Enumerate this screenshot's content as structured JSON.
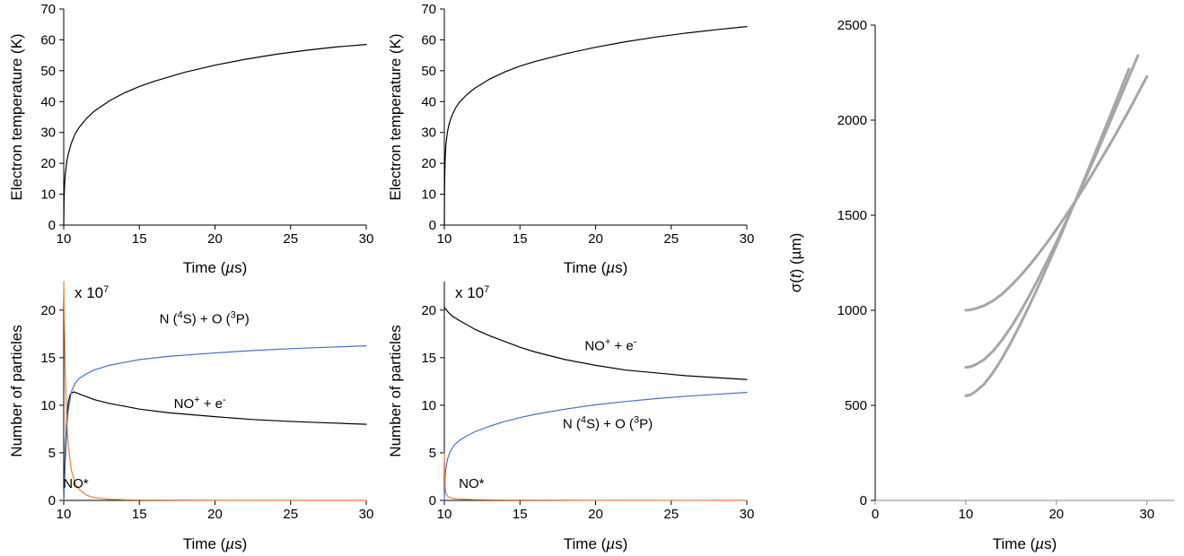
{
  "chart_data": [
    {
      "id": "te-left",
      "type": "line",
      "title": "",
      "xlabel_parts": [
        "Time (",
        "µ",
        "s)"
      ],
      "ylabel": "Electron temperature (K)",
      "xlim": [
        10,
        30
      ],
      "ylim": [
        0,
        70
      ],
      "xticks": [
        10,
        15,
        20,
        25,
        30
      ],
      "yticks": [
        0,
        10,
        20,
        30,
        40,
        50,
        60,
        70
      ],
      "grid": false,
      "series": [
        {
          "color": "#000000",
          "x": [
            10,
            10.02,
            10.05,
            10.1,
            10.2,
            10.3,
            10.5,
            10.75,
            11,
            11.5,
            12,
            13,
            14,
            15,
            16,
            18,
            20,
            22,
            24,
            26,
            28,
            30
          ],
          "y": [
            0,
            8,
            12.5,
            16.5,
            20.5,
            23,
            26.5,
            29.5,
            31.5,
            34.5,
            36.8,
            40.2,
            42.8,
            44.9,
            46.6,
            49.5,
            51.8,
            53.7,
            55.3,
            56.6,
            57.7,
            58.5
          ]
        }
      ]
    },
    {
      "id": "te-mid",
      "type": "line",
      "title": "",
      "xlabel_parts": [
        "Time (",
        "µ",
        "s)"
      ],
      "ylabel": "Electron temperature (K)",
      "xlim": [
        10,
        30
      ],
      "ylim": [
        0,
        70
      ],
      "xticks": [
        10,
        15,
        20,
        25,
        30
      ],
      "yticks": [
        0,
        10,
        20,
        30,
        40,
        50,
        60,
        70
      ],
      "grid": false,
      "series": [
        {
          "color": "#000000",
          "x": [
            10,
            10.01,
            10.03,
            10.06,
            10.1,
            10.2,
            10.3,
            10.5,
            10.75,
            11,
            11.5,
            12,
            13,
            14,
            15,
            16,
            18,
            20,
            22,
            24,
            26,
            28,
            30
          ],
          "y": [
            0,
            10,
            17,
            22,
            26,
            30,
            32.5,
            35.5,
            38,
            39.8,
            42.3,
            44.3,
            47.3,
            49.6,
            51.5,
            53,
            55.5,
            57.6,
            59.4,
            60.9,
            62.2,
            63.3,
            64.3
          ]
        }
      ]
    },
    {
      "id": "np-left",
      "type": "line",
      "title": "",
      "multiplier": [
        "x 10",
        "7"
      ],
      "xlabel_parts": [
        "Time (",
        "µ",
        "s)"
      ],
      "ylabel": "Number of particles",
      "xlim": [
        10,
        30
      ],
      "ylim": [
        0,
        23
      ],
      "xticks": [
        10,
        15,
        20,
        25,
        30
      ],
      "yticks": [
        0,
        5,
        10,
        15,
        20
      ],
      "grid": false,
      "series": [
        {
          "color": "#000000",
          "x": [
            10,
            10.1,
            10.2,
            10.3,
            10.4,
            10.5,
            10.7,
            11,
            11.5,
            12,
            13,
            14,
            15,
            17,
            20,
            22.5,
            25,
            27.5,
            30
          ],
          "y": [
            0,
            5,
            8.5,
            10.3,
            11,
            11.3,
            11.4,
            11.2,
            10.9,
            10.6,
            10.2,
            9.9,
            9.6,
            9.2,
            8.8,
            8.5,
            8.3,
            8.15,
            8
          ]
        },
        {
          "color": "#4472c4",
          "x": [
            10,
            10.1,
            10.2,
            10.3,
            10.5,
            10.75,
            11,
            11.5,
            12,
            13,
            14,
            15,
            17,
            20,
            22.5,
            25,
            27.5,
            30
          ],
          "y": [
            0,
            4,
            7.5,
            9.5,
            11.4,
            12.3,
            12.8,
            13.3,
            13.7,
            14.2,
            14.5,
            14.8,
            15.15,
            15.5,
            15.75,
            15.95,
            16.1,
            16.25
          ]
        },
        {
          "color": "#ed7d31",
          "x": [
            10,
            10.05,
            10.1,
            10.2,
            10.3,
            10.5,
            10.75,
            11,
            11.5,
            12,
            13,
            14,
            15,
            20,
            30
          ],
          "y": [
            23,
            18,
            13.5,
            8.5,
            5.8,
            3.2,
            1.8,
            1.2,
            0.55,
            0.3,
            0.12,
            0.07,
            0.04,
            0.01,
            0
          ]
        }
      ],
      "annotations": [
        {
          "parts": [
            "N (",
            "4",
            "S) + O (",
            "3",
            "P)"
          ],
          "x": 19.3,
          "y": 18.6
        },
        {
          "parts": [
            "NO",
            "+",
            " + e",
            "-"
          ],
          "x": 19,
          "y": 9.7
        },
        {
          "parts": [
            "NO*"
          ],
          "x": 10.8,
          "y": 1.3
        }
      ]
    },
    {
      "id": "np-mid",
      "type": "line",
      "title": "",
      "multiplier": [
        "x 10",
        "7"
      ],
      "xlabel_parts": [
        "Time (",
        "µ",
        "s)"
      ],
      "ylabel": "Number of particles",
      "xlim": [
        10,
        30
      ],
      "ylim": [
        0,
        23
      ],
      "xticks": [
        10,
        15,
        20,
        25,
        30
      ],
      "yticks": [
        0,
        5,
        10,
        15,
        20
      ],
      "grid": false,
      "series": [
        {
          "color": "#000000",
          "x": [
            10,
            10.25,
            10.5,
            11,
            12,
            13,
            14,
            15,
            16,
            18,
            20,
            22,
            24,
            26,
            28,
            30
          ],
          "y": [
            20.3,
            19.8,
            19.4,
            18.9,
            18,
            17.3,
            16.7,
            16.1,
            15.6,
            14.8,
            14.2,
            13.7,
            13.4,
            13.1,
            12.9,
            12.7
          ]
        },
        {
          "color": "#4472c4",
          "x": [
            10,
            10.02,
            10.05,
            10.1,
            10.2,
            10.4,
            10.7,
            11,
            11.5,
            12,
            13,
            14,
            15,
            16,
            18,
            20,
            22,
            24,
            26,
            28,
            30
          ],
          "y": [
            0,
            1,
            2.3,
            3.3,
            4.3,
            5.2,
            5.9,
            6.3,
            6.8,
            7.2,
            7.8,
            8.3,
            8.7,
            9.05,
            9.6,
            10.05,
            10.4,
            10.7,
            10.95,
            11.15,
            11.35
          ]
        },
        {
          "color": "#ed7d31",
          "x": [
            10,
            10.03,
            10.06,
            10.1,
            10.2,
            10.35,
            10.6,
            11,
            12,
            14,
            20,
            30
          ],
          "y": [
            5,
            2.5,
            1.4,
            0.8,
            0.45,
            0.3,
            0.2,
            0.14,
            0.08,
            0.04,
            0.01,
            0
          ]
        }
      ],
      "annotations": [
        {
          "parts": [
            "NO",
            "+",
            " + e",
            "-"
          ],
          "x": 21,
          "y": 15.8
        },
        {
          "parts": [
            "N (",
            "4",
            "S) + O (",
            "3",
            "P)"
          ],
          "x": 20.8,
          "y": 7.6
        },
        {
          "parts": [
            "NO*"
          ],
          "x": 11.8,
          "y": 1.3
        }
      ]
    },
    {
      "id": "sigma",
      "type": "line",
      "title": "",
      "xlabel_parts": [
        "Time (",
        "µ",
        "s)"
      ],
      "ylabel_parts": [
        "σ(",
        "t",
        ") (µm)"
      ],
      "xlim": [
        0,
        33
      ],
      "ylim": [
        0,
        2500
      ],
      "xticks": [
        0,
        10,
        20,
        30
      ],
      "yticks": [
        0,
        500,
        1000,
        1500,
        2000,
        2500
      ],
      "grid": false,
      "series": [
        {
          "color": "#a6a6a6",
          "x": [
            10,
            10.5,
            11,
            12,
            13,
            14,
            15,
            16,
            17,
            18,
            19,
            20,
            21,
            22,
            23,
            24,
            25,
            26,
            27,
            28,
            29,
            30
          ],
          "y": [
            1000,
            1002,
            1008,
            1024,
            1050,
            1085,
            1130,
            1180,
            1235,
            1295,
            1358,
            1425,
            1495,
            1567,
            1642,
            1720,
            1800,
            1880,
            1965,
            2050,
            2140,
            2230
          ]
        },
        {
          "color": "#a6a6a6",
          "x": [
            10,
            10.5,
            11,
            12,
            13,
            14,
            15,
            16,
            17,
            18,
            19,
            20,
            21,
            22,
            23,
            24,
            25,
            26,
            27,
            28,
            29
          ],
          "y": [
            700,
            703,
            712,
            740,
            785,
            843,
            912,
            990,
            1075,
            1165,
            1260,
            1358,
            1460,
            1563,
            1670,
            1778,
            1888,
            2000,
            2112,
            2226,
            2340
          ]
        },
        {
          "color": "#a6a6a6",
          "x": [
            10,
            10.5,
            11,
            12,
            13,
            14,
            15,
            16,
            17,
            18,
            19,
            20,
            21,
            22,
            23,
            24,
            25,
            26,
            27,
            28
          ],
          "y": [
            550,
            555,
            570,
            610,
            672,
            747,
            832,
            925,
            1023,
            1125,
            1232,
            1340,
            1452,
            1565,
            1680,
            1795,
            1912,
            2030,
            2148,
            2268
          ]
        }
      ]
    }
  ]
}
